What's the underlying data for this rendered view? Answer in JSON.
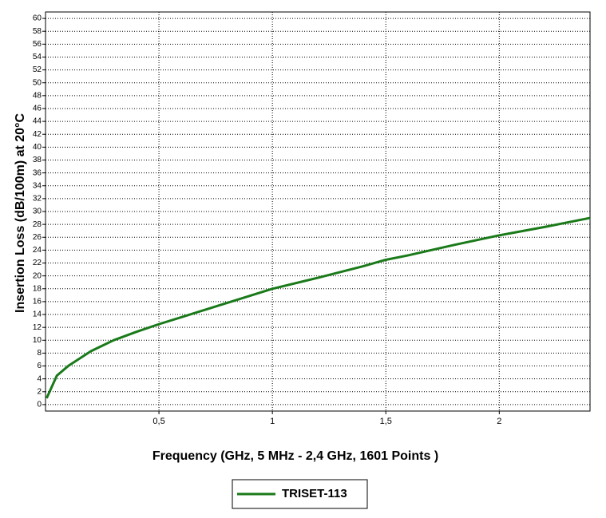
{
  "chart_data": {
    "type": "line",
    "x_label": "Frequency (GHz, 5 MHz - 2,4 GHz, 1601 Points )",
    "y_label": "Insertion Loss (dB/100m) at 20°C",
    "x": [
      0.005,
      0.05,
      0.1,
      0.2,
      0.3,
      0.4,
      0.5,
      0.6,
      0.7,
      0.8,
      0.9,
      1.0,
      1.2,
      1.4,
      1.5,
      1.6,
      1.8,
      2.0,
      2.2,
      2.4
    ],
    "series": [
      {
        "name": "TRISET-113",
        "color": "#1a7a1a",
        "values": [
          1,
          4.5,
          6,
          8.3,
          10,
          11.3,
          12.5,
          13.6,
          14.7,
          15.8,
          16.9,
          18,
          19.7,
          21.5,
          22.5,
          23.2,
          24.8,
          26.3,
          27.6,
          29
        ]
      }
    ],
    "xlim": [
      0,
      2.4
    ],
    "ylim": [
      -1,
      61
    ],
    "xticks": [
      {
        "value": 0.5,
        "label": "0,5"
      },
      1,
      {
        "value": 1.5,
        "label": "1,5"
      },
      2
    ],
    "yticks": [
      0,
      2,
      4,
      6,
      8,
      10,
      12,
      14,
      16,
      18,
      20,
      22,
      24,
      26,
      28,
      30,
      32,
      34,
      36,
      38,
      40,
      42,
      44,
      46,
      48,
      50,
      52,
      54,
      56,
      58,
      60
    ],
    "grid": true,
    "legend": "bottom"
  }
}
